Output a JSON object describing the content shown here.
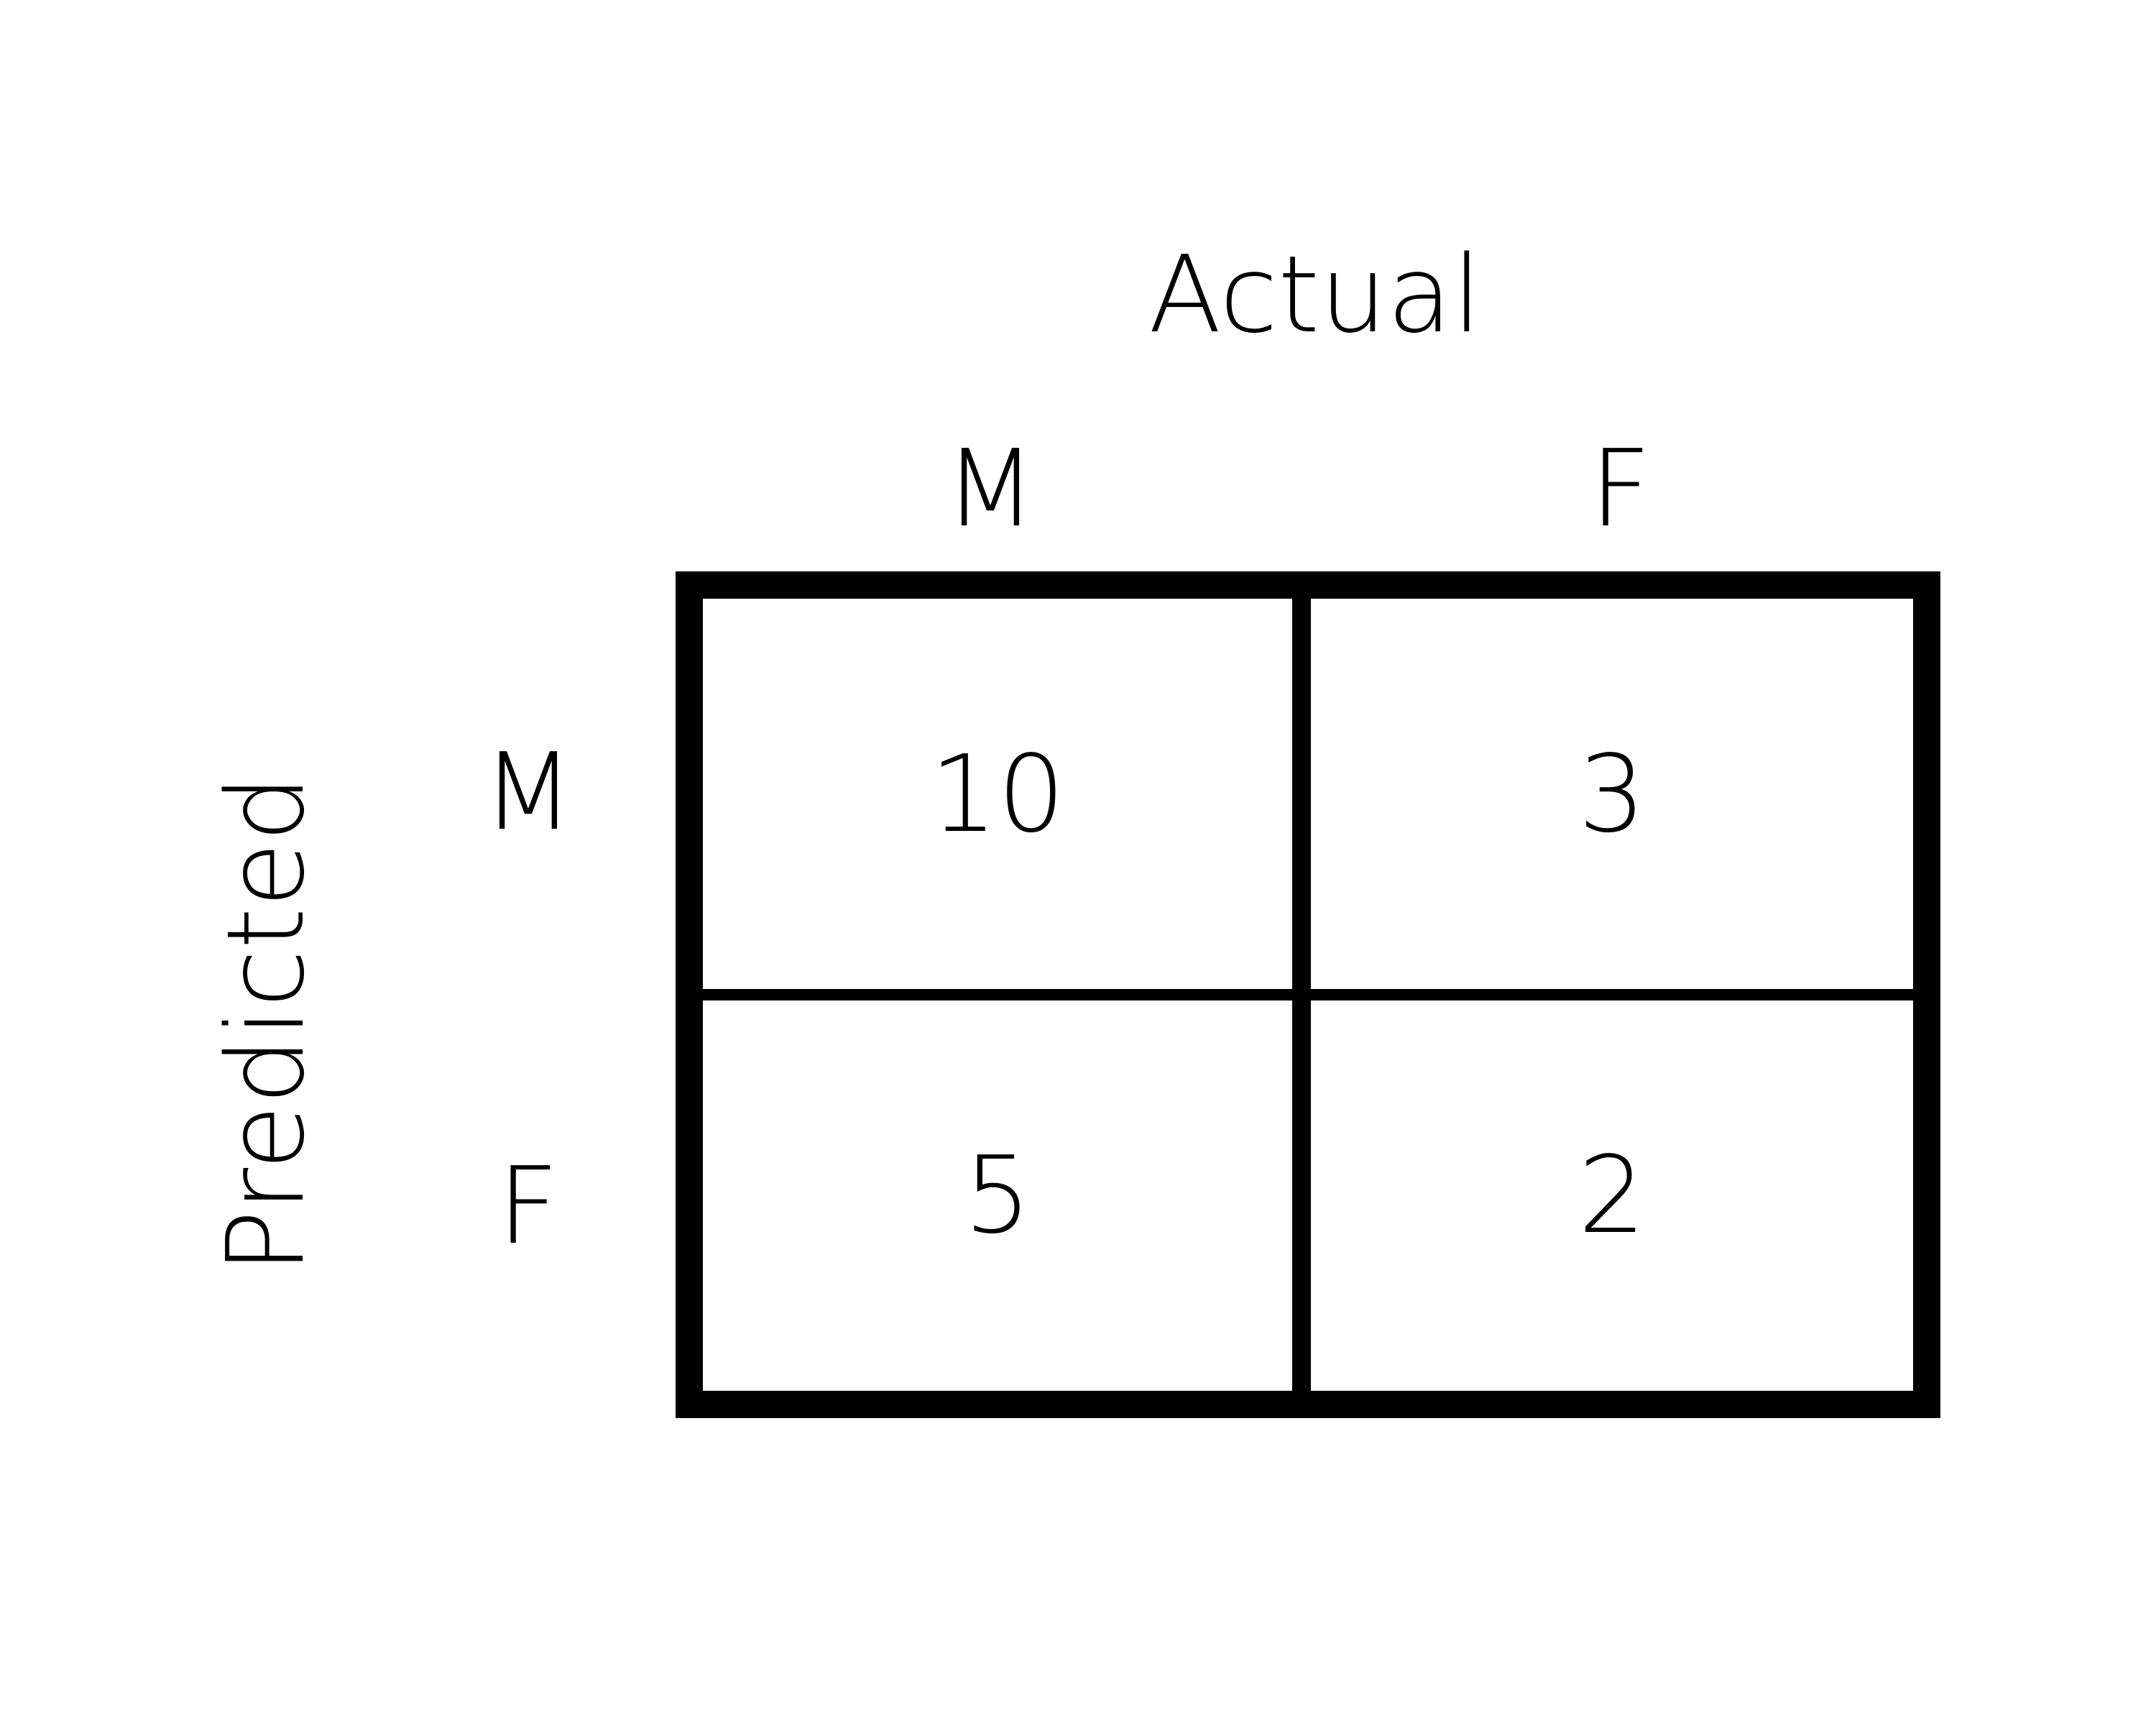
{
  "titles": {
    "actual": "Actual",
    "predicted": "Predicted"
  },
  "columns": [
    "M",
    "F"
  ],
  "rows": [
    "M",
    "F"
  ],
  "matrix": [
    [
      10,
      3
    ],
    [
      5,
      2
    ]
  ],
  "colors": {
    "background": "#ffffff",
    "border": "#000000",
    "text": "#000000"
  }
}
